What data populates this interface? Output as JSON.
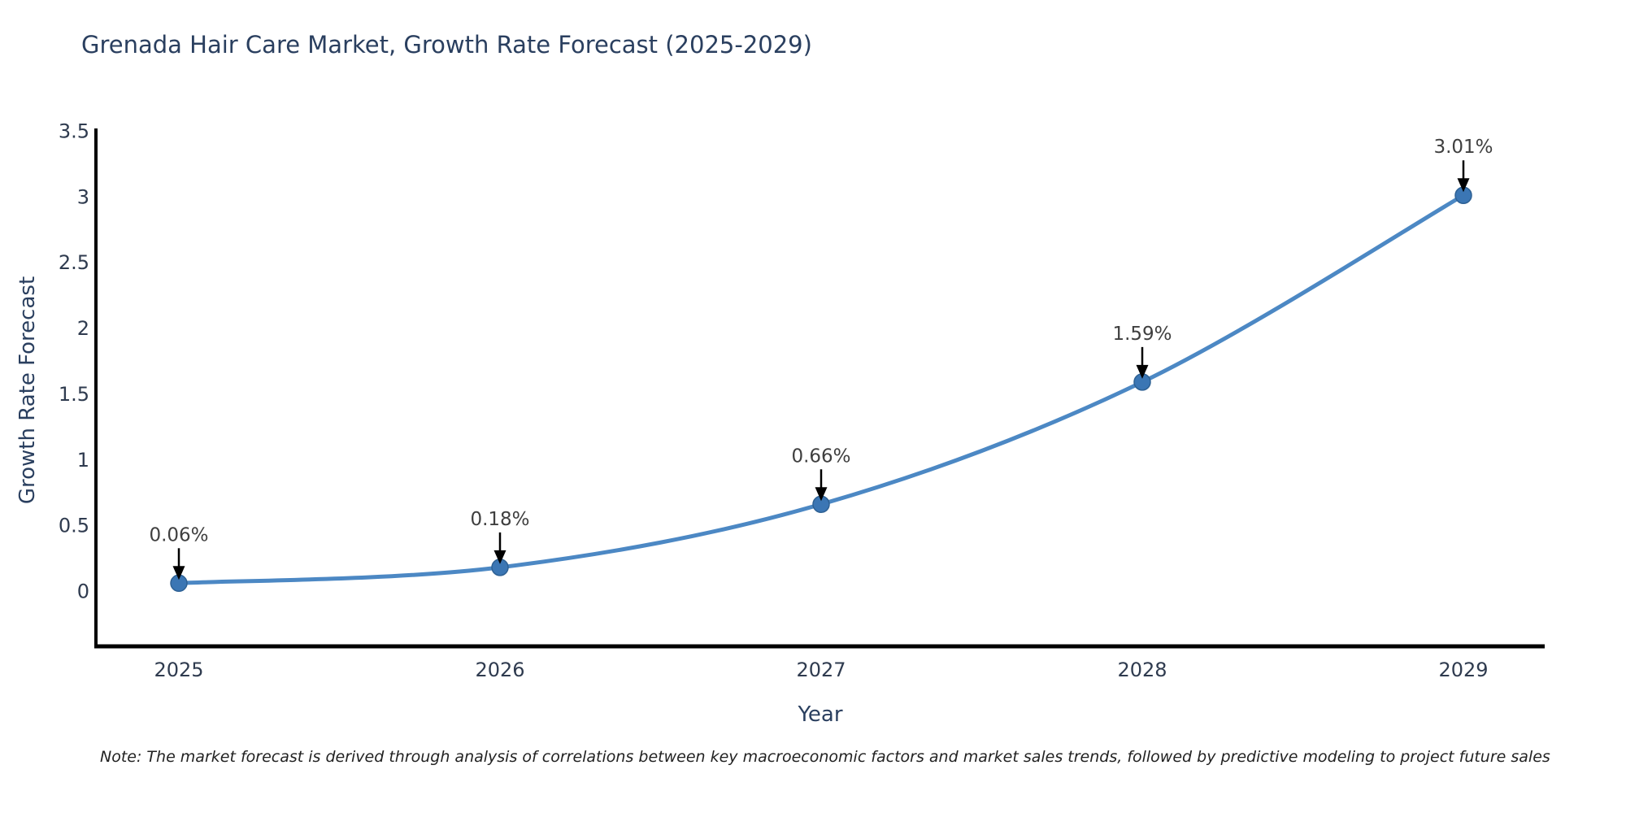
{
  "chart_data": {
    "type": "line",
    "title": "Grenada Hair Care Market, Growth Rate Forecast (2025-2029)",
    "xlabel": "Year",
    "ylabel": "Growth Rate Forecast",
    "x": [
      "2025",
      "2026",
      "2027",
      "2028",
      "2029"
    ],
    "series": [
      {
        "name": "Growth Rate Forecast",
        "values": [
          0.06,
          0.18,
          0.66,
          1.59,
          3.01
        ]
      }
    ],
    "point_labels": [
      "0.06%",
      "0.18%",
      "0.66%",
      "1.59%",
      "3.01%"
    ],
    "ylim": [
      0,
      3.5
    ],
    "yticks": [
      0,
      0.5,
      1,
      1.5,
      2,
      2.5,
      3,
      3.5
    ],
    "ytick_labels": [
      "0",
      "0.5",
      "1",
      "1.5",
      "2",
      "2.5",
      "3",
      "3.5"
    ],
    "grid": false,
    "legend": "none",
    "line_shape": "spline",
    "colors": {
      "line": "#4c88c4",
      "marker": "#3b76b4",
      "marker_edge": "#2e6194",
      "annotation_text": "#3f3f3f",
      "arrow": "#000000",
      "axis_line": "#000000",
      "tick_text": "#2f3b4f",
      "title_text": "#2a3f5f"
    }
  },
  "note": {
    "text": "Note: The market forecast is derived through analysis of correlations between key macroeconomic factors and market sales trends, followed by predictive modeling to project future sales"
  }
}
